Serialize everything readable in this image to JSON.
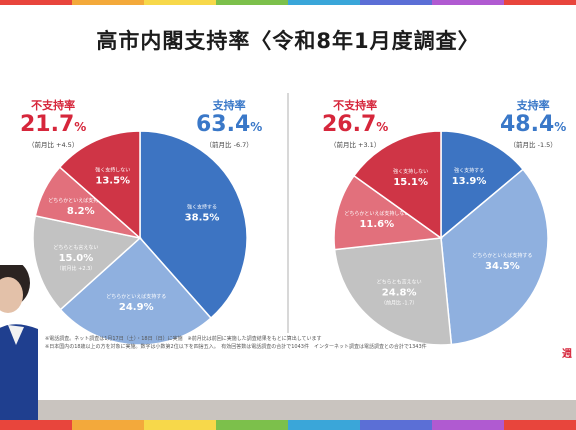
{
  "title": "高市内閣支持率〈令和8年1月度調査〉",
  "colors": {
    "strongly_support": "#3d74c2",
    "support_somewhat": "#8fb0df",
    "neither": "#c2c2c2",
    "oppose_somewhat": "#e2707c",
    "strongly_oppose": "#cf3546",
    "label_red": "#d6263b",
    "label_blue": "#3a78c8"
  },
  "chart_data": [
    {
      "type": "pie",
      "summary": {
        "oppose_label": "不支持率",
        "oppose_value": "21.7",
        "oppose_change": "（前月比 +4.5）",
        "support_label": "支持率",
        "support_value": "63.4",
        "support_change": "（前月比 -6.7）"
      },
      "slices": [
        {
          "label": "強く支持する",
          "value": 38.5,
          "color_key": "strongly_support"
        },
        {
          "label": "どちらかといえば支持する",
          "value": 24.9,
          "color_key": "support_somewhat"
        },
        {
          "label": "どちらとも言えない",
          "value": 15.0,
          "change": "（前月比 +2.3）",
          "color_key": "neither"
        },
        {
          "label": "どちらかといえば支持しない",
          "value": 8.2,
          "color_key": "oppose_somewhat"
        },
        {
          "label": "強く支持しない",
          "value": 13.5,
          "color_key": "strongly_oppose"
        }
      ]
    },
    {
      "type": "pie",
      "summary": {
        "oppose_label": "不支持率",
        "oppose_value": "26.7",
        "oppose_change": "（前月比 +3.1）",
        "support_label": "支持率",
        "support_value": "48.4",
        "support_change": "（前月比 -1.5）"
      },
      "slices": [
        {
          "label": "強く支持する",
          "value": 13.9,
          "color_key": "strongly_support"
        },
        {
          "label": "どちらかといえば支持する",
          "value": 34.5,
          "color_key": "support_somewhat"
        },
        {
          "label": "どちらとも言えない",
          "value": 24.8,
          "change": "（前月比 -1.7）",
          "color_key": "neither"
        },
        {
          "label": "どちらかといえば支持しない",
          "value": 11.6,
          "color_key": "oppose_somewhat"
        },
        {
          "label": "強く支持しない",
          "value": 15.1,
          "color_key": "strongly_oppose"
        }
      ]
    }
  ],
  "footnotes": [
    "※電話調査。ネット調査は1月17日（土）・18日（日）に実施　※前月比は前回に実施した調査結果をもとに算出しています",
    "※日本国内の18歳以上の方を対象に実施。数字は小数第2位以下を四捨五入。　有効回答数は電話調査の合計で1043件　インターネット調査は電話調査との合計で1343件"
  ],
  "logo": "週"
}
